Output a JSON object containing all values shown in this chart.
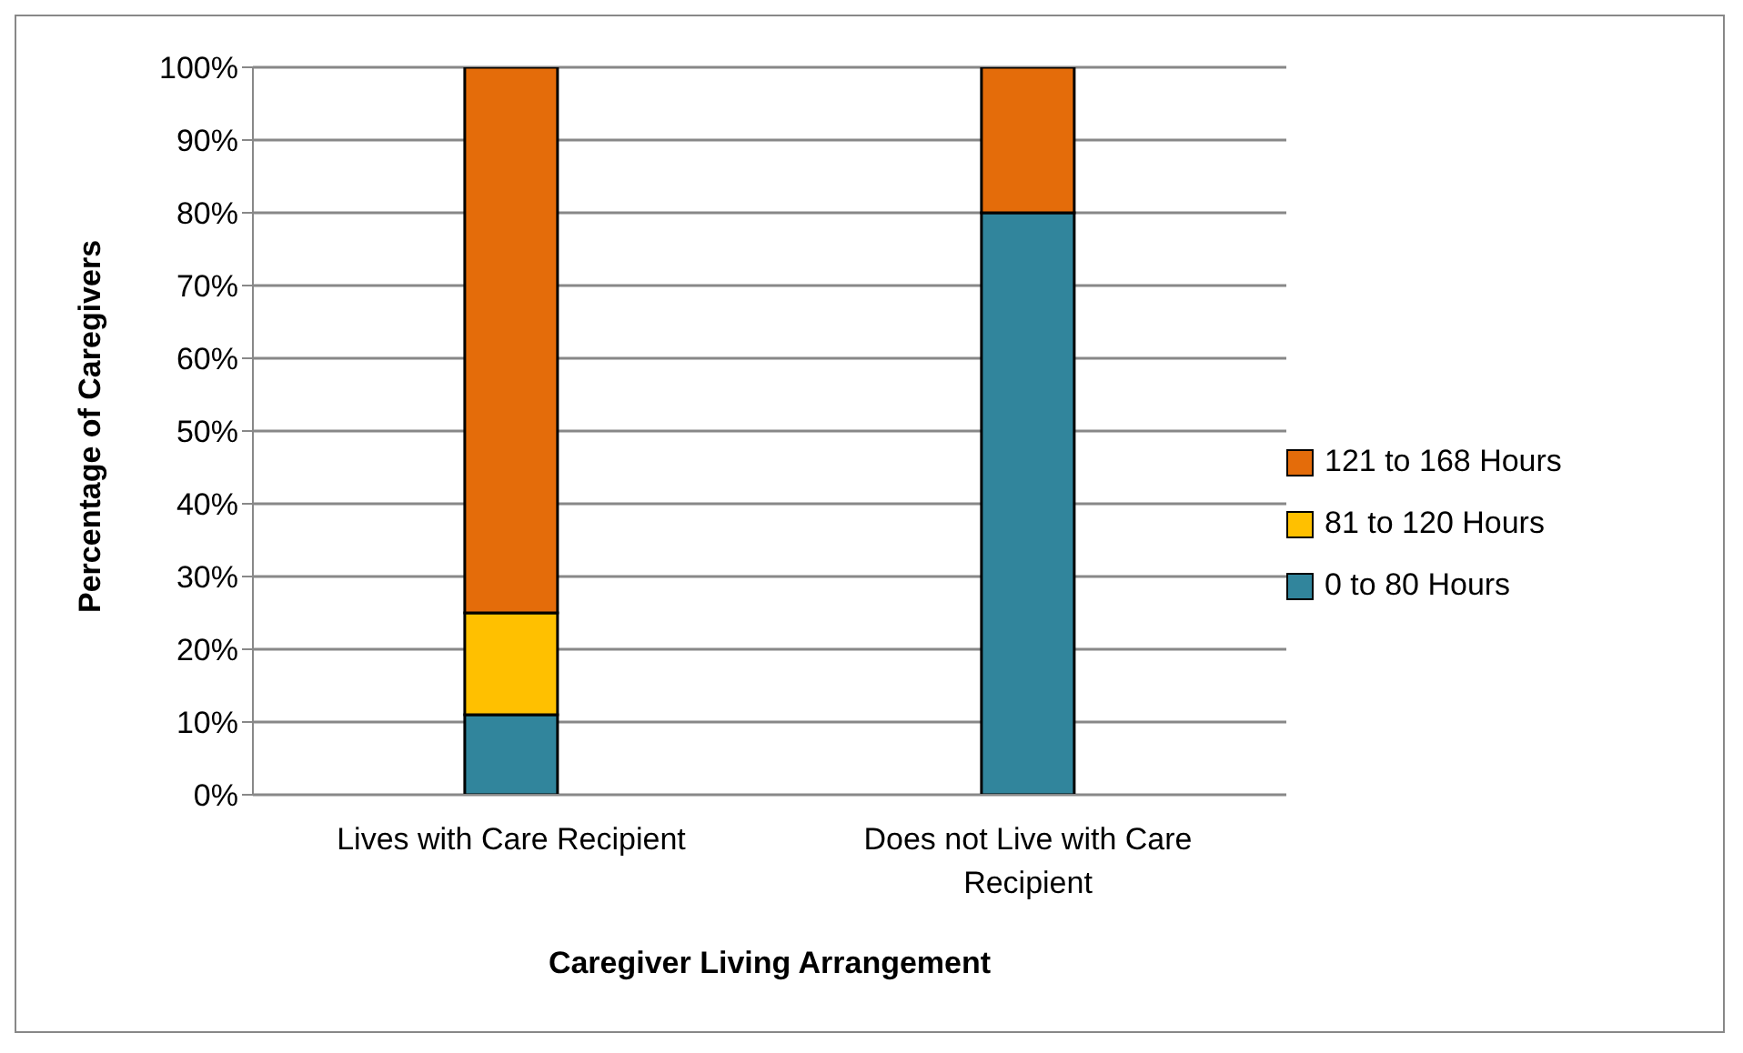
{
  "chart_data": {
    "type": "bar",
    "stacked": true,
    "xlabel": "Caregiver Living Arrangement",
    "ylabel": "Percentage of Caregivers",
    "categories": [
      "Lives with Care Recipient",
      "Does not Live with Care Recipient"
    ],
    "series": [
      {
        "name": "0 to 80 Hours",
        "color": "#31859c",
        "values": [
          11,
          80
        ]
      },
      {
        "name": "81 to 120 Hours",
        "color": "#ffc000",
        "values": [
          14,
          0
        ]
      },
      {
        "name": "121 to 168 Hours",
        "color": "#e46c0a",
        "values": [
          75,
          20
        ]
      }
    ],
    "ylim": [
      0,
      100
    ],
    "yticks": [
      {
        "value": 0,
        "label": "0%"
      },
      {
        "value": 10,
        "label": "10%"
      },
      {
        "value": 20,
        "label": "20%"
      },
      {
        "value": 30,
        "label": "30%"
      },
      {
        "value": 40,
        "label": "40%"
      },
      {
        "value": 50,
        "label": "50%"
      },
      {
        "value": 60,
        "label": "60%"
      },
      {
        "value": 70,
        "label": "70%"
      },
      {
        "value": 80,
        "label": "80%"
      },
      {
        "value": 90,
        "label": "90%"
      },
      {
        "value": 100,
        "label": "100%"
      }
    ],
    "grid": "y",
    "legend": "right"
  }
}
